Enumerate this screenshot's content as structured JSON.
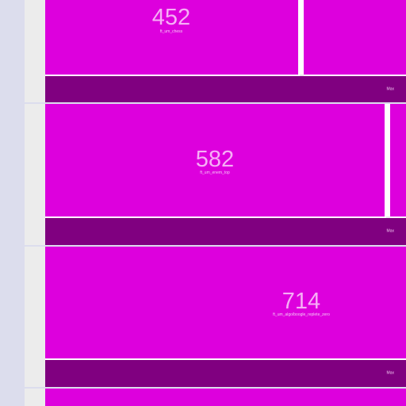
{
  "colors": {
    "block": "#dd00dd",
    "footer_bar": "#800080",
    "gutter": "#ececec",
    "side_strip": "#dcdded",
    "divider": "#ffffff"
  },
  "rows": [
    {
      "value": "452",
      "label": "ft_um_chess",
      "footer": "Max"
    },
    {
      "value": "582",
      "label": "ft_um_enem_top",
      "footer": "Max"
    },
    {
      "value": "714",
      "label": "ft_um_algo/boogle_replete_zero",
      "footer": "Max"
    }
  ]
}
